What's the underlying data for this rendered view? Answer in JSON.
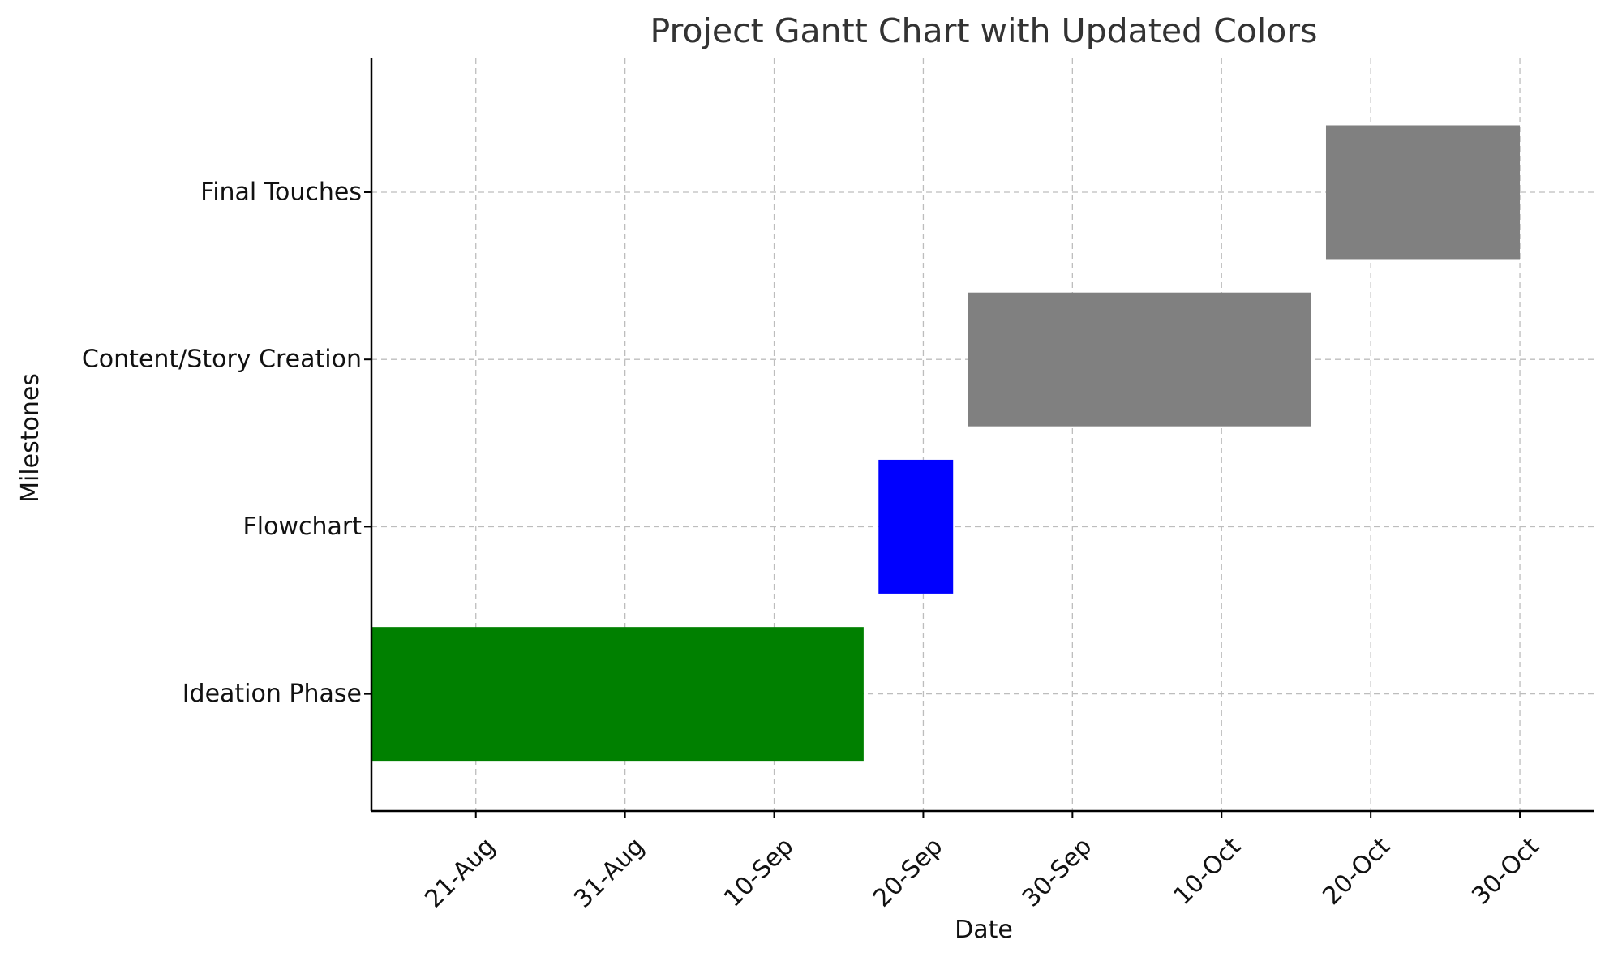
{
  "chart_data": {
    "type": "gantt",
    "title": "Project Gantt Chart with Updated Colors",
    "xlabel": "Date",
    "ylabel": "Milestones",
    "x_axis": {
      "type": "date",
      "range": [
        "2023-08-14",
        "2023-11-04"
      ],
      "ticks": [
        {
          "date": "2023-08-21",
          "label": "21-Aug"
        },
        {
          "date": "2023-08-31",
          "label": "31-Aug"
        },
        {
          "date": "2023-09-10",
          "label": "10-Sep"
        },
        {
          "date": "2023-09-20",
          "label": "20-Sep"
        },
        {
          "date": "2023-09-30",
          "label": "30-Sep"
        },
        {
          "date": "2023-10-10",
          "label": "10-Oct"
        },
        {
          "date": "2023-10-20",
          "label": "20-Oct"
        },
        {
          "date": "2023-10-30",
          "label": "30-Oct"
        }
      ],
      "tick_rotation_deg": 45
    },
    "grid": true,
    "grid_style": "dashed",
    "tasks": [
      {
        "name": "Ideation Phase",
        "start": "2023-08-14",
        "end": "2023-09-16",
        "color": "#008000"
      },
      {
        "name": "Flowchart",
        "start": "2023-09-17",
        "end": "2023-09-22",
        "color": "#0000ff"
      },
      {
        "name": "Content/Story Creation",
        "start": "2023-09-23",
        "end": "2023-10-16",
        "color": "#808080"
      },
      {
        "name": "Final Touches",
        "start": "2023-10-17",
        "end": "2023-10-30",
        "color": "#808080"
      }
    ]
  }
}
